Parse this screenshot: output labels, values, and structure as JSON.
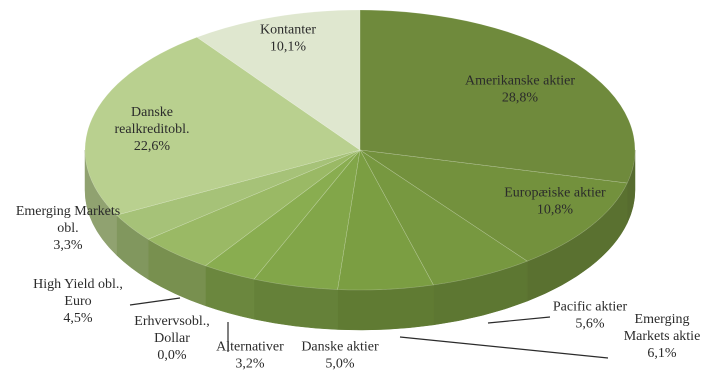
{
  "chart_data": {
    "type": "pie",
    "style": "3d",
    "start_angle_deg": -90,
    "direction": "clockwise",
    "slices": [
      {
        "name": "Amerikanske aktier",
        "label_lines": [
          "Amerikanske aktier",
          "28,8%"
        ],
        "value": 28.8,
        "color": "#6f8a3c"
      },
      {
        "name": "Europæiske aktier",
        "label_lines": [
          "Europæiske aktier",
          "10,8%"
        ],
        "value": 10.8,
        "color": "#73913d"
      },
      {
        "name": "Emerging Markets aktier",
        "label_lines": [
          "Emerging",
          "Markets aktie",
          "6,1%"
        ],
        "value": 6.1,
        "color": "#779840"
      },
      {
        "name": "Pacific aktier",
        "label_lines": [
          "Pacific aktier",
          "5,6%"
        ],
        "value": 5.6,
        "color": "#7b9e42"
      },
      {
        "name": "Danske aktier",
        "label_lines": [
          "Danske aktier",
          "5,0%"
        ],
        "value": 5.0,
        "color": "#82a649"
      },
      {
        "name": "Alternativer",
        "label_lines": [
          "Alternativer",
          "3,2%"
        ],
        "value": 3.2,
        "color": "#89ad50"
      },
      {
        "name": "Erhvervsobl., Dollar",
        "label_lines": [
          "Erhvervsobl.,",
          "Dollar",
          "0,0%"
        ],
        "value": 0.0,
        "color": "#90b358"
      },
      {
        "name": "High Yield obl., Euro",
        "label_lines": [
          "High Yield obl.,",
          "Euro",
          "4,5%"
        ],
        "value": 4.5,
        "color": "#9ab965"
      },
      {
        "name": "Emerging Markets obl.",
        "label_lines": [
          "Emerging Markets",
          "obl.",
          "3,3%"
        ],
        "value": 3.3,
        "color": "#a6c278"
      },
      {
        "name": "Danske realkreditobl.",
        "label_lines": [
          "Danske",
          "realkreditobl.",
          "22,6%"
        ],
        "value": 22.6,
        "color": "#b9d08f"
      },
      {
        "name": "Kontanter",
        "label_lines": [
          "Kontanter",
          "10,1%"
        ],
        "value": 10.1,
        "color": "#dfe7cf"
      }
    ]
  }
}
